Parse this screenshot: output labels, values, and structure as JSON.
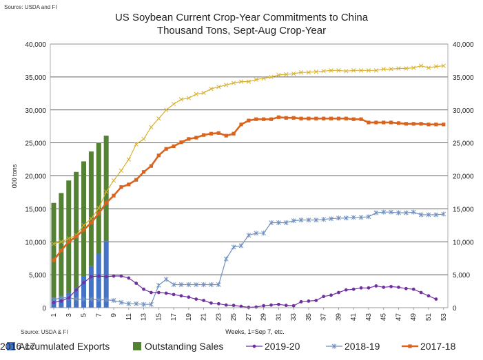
{
  "source_top": "Source: USDA and  FI",
  "source_bottom": "Source: USDA & FI",
  "chart_data": {
    "type": "bar",
    "title": "US Soybean Current Crop-Year Commitments to China",
    "subtitle": "Thousand Tons, Sept-Aug Crop-Year",
    "xlabel": "Weeks, 1=Sep 7, etc.",
    "ylabel": "000 tons",
    "ylim": [
      0,
      40000
    ],
    "y2lim": [
      0,
      40000
    ],
    "yticks": [
      "0",
      "5,000",
      "10,000",
      "15,000",
      "20,000",
      "25,000",
      "30,000",
      "35,000",
      "40,000"
    ],
    "xticks": [
      "1",
      "3",
      "5",
      "7",
      "9",
      "11",
      "13",
      "15",
      "17",
      "19",
      "21",
      "23",
      "25",
      "27",
      "29",
      "31",
      "33",
      "35",
      "37",
      "39",
      "41",
      "43",
      "45",
      "47",
      "49",
      "51",
      "53"
    ],
    "grid": "horizontal",
    "legend_position": "bottom",
    "stacked_bars": {
      "weeks": [
        1,
        2,
        3,
        4,
        5,
        6,
        7,
        8
      ],
      "series": [
        {
          "name": "Accumulated Exports",
          "color": "#4472c4",
          "values": [
            1500,
            1600,
            2200,
            3000,
            4800,
            6300,
            8200,
            10100
          ]
        },
        {
          "name": "Outstanding Sales",
          "color": "#548235",
          "values": [
            14400,
            15800,
            17100,
            17600,
            17400,
            17400,
            16800,
            16000
          ]
        }
      ]
    },
    "lines": [
      {
        "name": "2019-20",
        "color": "#7030a0",
        "marker": "circle",
        "values": [
          800,
          1000,
          1500,
          2700,
          3800,
          4700,
          4800,
          4700,
          4800,
          4800,
          4500,
          3700,
          2800,
          2300,
          2300,
          2200,
          2000,
          1800,
          1600,
          1300,
          1100,
          700,
          600,
          400,
          350,
          200,
          50,
          100,
          300,
          400,
          500,
          350,
          300,
          900,
          1000,
          1100,
          1700,
          1900,
          2300,
          2700,
          2800,
          3000,
          3000,
          3300,
          3100,
          3200,
          3100,
          2900,
          2800,
          2300,
          1800,
          1300
        ]
      },
      {
        "name": "2018-19",
        "color": "#6f8fbf",
        "marker": "star",
        "values": [
          1200,
          1500,
          1500,
          1300,
          1300,
          1300,
          1200,
          1200,
          1100,
          800,
          600,
          600,
          500,
          500,
          3400,
          4300,
          3500,
          3500,
          3500,
          3500,
          3500,
          3500,
          3500,
          7400,
          9200,
          9400,
          11000,
          11300,
          11300,
          12900,
          12900,
          12900,
          13200,
          13300,
          13300,
          13300,
          13400,
          13500,
          13600,
          13600,
          13700,
          13700,
          13800,
          14400,
          14500,
          14500,
          14400,
          14400,
          14500,
          14100,
          14100,
          14100,
          14200
        ]
      },
      {
        "name": "2017-18",
        "color": "#d9641e",
        "marker": "square",
        "values": [
          7200,
          8700,
          10000,
          10800,
          11800,
          12900,
          14300,
          15900,
          17000,
          18300,
          18700,
          19400,
          20600,
          21500,
          23100,
          24100,
          24500,
          25100,
          25600,
          25800,
          26200,
          26400,
          26500,
          26100,
          26400,
          27800,
          28400,
          28600,
          28600,
          28600,
          28900,
          28800,
          28800,
          28700,
          28700,
          28700,
          28700,
          28700,
          28700,
          28700,
          28600,
          28600,
          28100,
          28100,
          28100,
          28100,
          28000,
          27900,
          27900,
          27900,
          27800,
          27800,
          27800
        ]
      },
      {
        "name": "2016-17",
        "color": "#d7b12e",
        "marker": "x",
        "values": [
          9700,
          10000,
          10500,
          11000,
          12500,
          13500,
          15100,
          17600,
          19300,
          20800,
          22500,
          24800,
          25600,
          27400,
          28700,
          30000,
          30900,
          31600,
          31800,
          32400,
          32600,
          33200,
          33500,
          33800,
          34100,
          34300,
          34300,
          34600,
          34800,
          35000,
          35300,
          35400,
          35500,
          35700,
          35700,
          35800,
          35900,
          36000,
          36000,
          35900,
          36000,
          36000,
          36000,
          36000,
          36200,
          36200,
          36300,
          36300,
          36400,
          36700,
          36400,
          36600,
          36700
        ]
      }
    ]
  }
}
